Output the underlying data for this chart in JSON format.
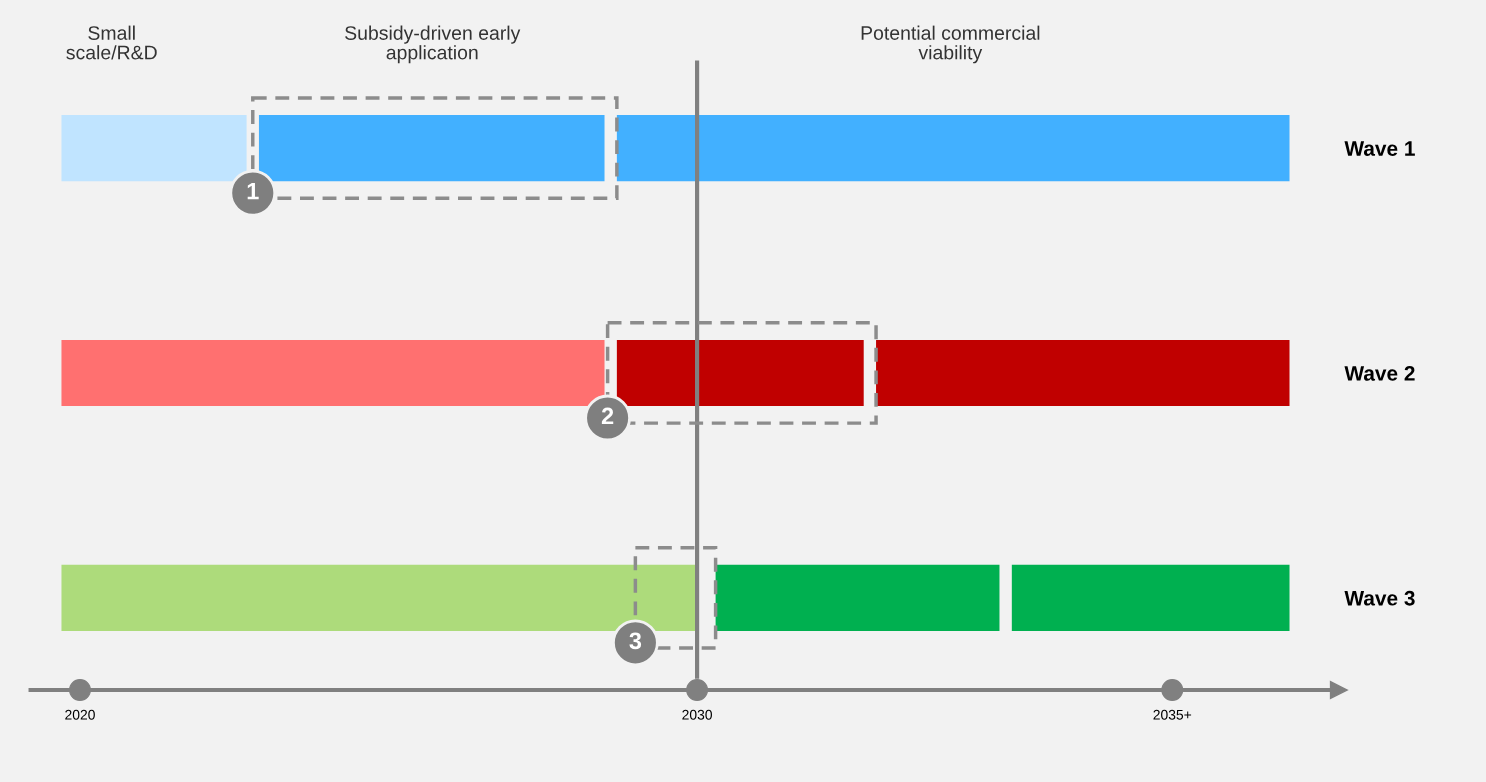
{
  "chart_data": {
    "type": "bar",
    "orientation": "horizontal",
    "categories": [
      "Wave 1",
      "Wave 2",
      "Wave 3"
    ],
    "series": [
      {
        "colors": [
          "#c0e4ff",
          "#ff7070",
          "#addb7b"
        ],
        "base": [
          2019.7,
          2019.7,
          2019.7
        ],
        "values": [
          3.0,
          8.8,
          10.3
        ]
      },
      {
        "colors": [
          "#42b0ff",
          "#c00000",
          "#00b050"
        ],
        "base": [
          2022.9,
          2028.7,
          2030.3
        ],
        "values": [
          5.6,
          4.0,
          4.6
        ]
      },
      {
        "colors": [
          "#42b0ff",
          "#c00000",
          "#00b050"
        ],
        "base": [
          2028.7,
          2032.9,
          2035.1
        ],
        "values": [
          10.9,
          6.7,
          4.5
        ]
      }
    ],
    "xlim": [
      2019.2,
      2040.4
    ],
    "xticks": [
      2020,
      2030,
      {
        "value": 2037.7,
        "label": "2035+"
      }
    ],
    "ref_lines": [
      {
        "axis": "x",
        "value": 2030,
        "color": "#808080"
      }
    ],
    "annotations": [
      "Small\nscale/R&D",
      "Subsidy-driven early\napplication",
      "Potential commercial\nviability",
      "1",
      "2",
      "3"
    ]
  }
}
